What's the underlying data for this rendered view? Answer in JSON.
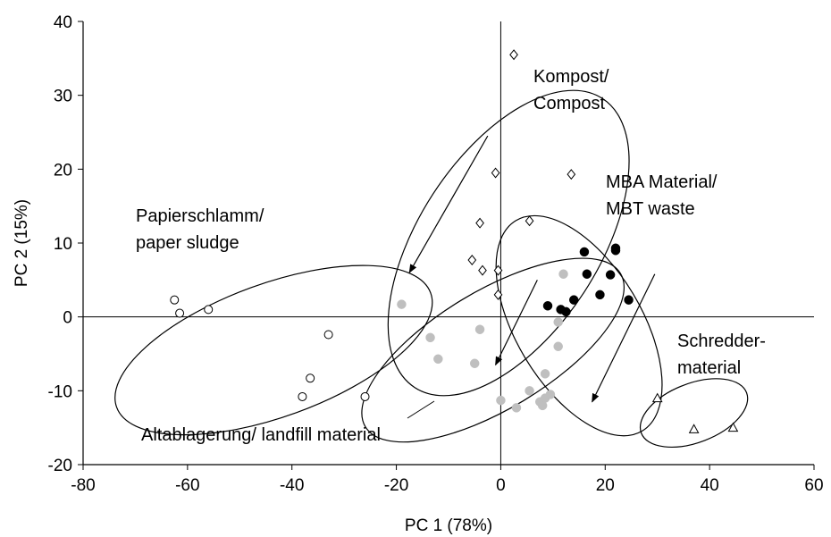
{
  "chart_data": {
    "type": "scatter",
    "title": "",
    "xlabel": "PC 1 (78%)",
    "ylabel": "PC 2 (15%)",
    "xlim": [
      -80,
      60
    ],
    "ylim": [
      -20,
      40
    ],
    "xticks": [
      -80,
      -60,
      -40,
      -20,
      0,
      20,
      40,
      60
    ],
    "yticks": [
      -20,
      -10,
      0,
      10,
      20,
      30,
      40
    ],
    "grid": false,
    "series": [
      {
        "name": "Kompost/ Compost",
        "marker": "diamond-open",
        "color": "#000000",
        "points": [
          [
            2.5,
            35.5
          ],
          [
            -1,
            19.5
          ],
          [
            13.5,
            19.3
          ],
          [
            5.5,
            13
          ],
          [
            -4,
            12.7
          ],
          [
            -5.5,
            7.7
          ],
          [
            -3.5,
            6.3
          ],
          [
            -0.5,
            6.3
          ],
          [
            -0.5,
            3
          ]
        ]
      },
      {
        "name": "MBA Material/ MBT waste",
        "marker": "circle-filled",
        "color": "#000000",
        "points": [
          [
            16,
            8.8
          ],
          [
            22,
            9.3
          ],
          [
            22,
            9
          ],
          [
            16.5,
            5.8
          ],
          [
            21,
            5.7
          ],
          [
            9,
            1.5
          ],
          [
            11.5,
            1
          ],
          [
            12.5,
            0.7
          ],
          [
            14,
            2.3
          ],
          [
            19,
            3
          ],
          [
            24.5,
            2.3
          ]
        ]
      },
      {
        "name": "Altablagerung/ landfill material",
        "marker": "circle-filled",
        "color": "#bfbfbf",
        "points": [
          [
            -19,
            1.7
          ],
          [
            -13.5,
            -2.8
          ],
          [
            -12,
            -5.7
          ],
          [
            -4,
            -1.7
          ],
          [
            -5,
            -6.3
          ],
          [
            12,
            5.8
          ],
          [
            11,
            -0.7
          ],
          [
            11,
            -4
          ],
          [
            0,
            -11.3
          ],
          [
            3,
            -12.3
          ],
          [
            5.5,
            -10
          ],
          [
            7.5,
            -11.5
          ],
          [
            8,
            -12
          ],
          [
            8.5,
            -11
          ],
          [
            8.5,
            -7.7
          ],
          [
            9.5,
            -10.5
          ]
        ]
      },
      {
        "name": "Papierschlamm/ paper sludge",
        "marker": "circle-open",
        "color": "#000000",
        "points": [
          [
            -62.5,
            2.3
          ],
          [
            -61.5,
            0.5
          ],
          [
            -56,
            1
          ],
          [
            -33,
            -2.4
          ],
          [
            -36.5,
            -8.3
          ],
          [
            -38,
            -10.8
          ],
          [
            -26,
            -10.8
          ]
        ]
      },
      {
        "name": "Schredder-material",
        "marker": "triangle-open",
        "color": "#000000",
        "points": [
          [
            30,
            -11
          ],
          [
            37,
            -15.2
          ],
          [
            44.5,
            -15
          ]
        ]
      }
    ],
    "annotations": [
      {
        "text_lines": [
          "Kompost/",
          "Compost"
        ]
      },
      {
        "text_lines": [
          "MBA Material/",
          "MBT waste"
        ]
      },
      {
        "text_lines": [
          "Papierschlamm/",
          "paper sludge"
        ]
      },
      {
        "text_lines": [
          "Schredder-",
          "material"
        ]
      },
      {
        "text_lines": [
          "Altablagerung/ landfill material"
        ]
      }
    ],
    "arrows": [
      {
        "from": [
          -2.5,
          24.5
        ],
        "to": [
          -17.5,
          6
        ]
      },
      {
        "from": [
          7,
          5
        ],
        "to": [
          -1,
          -6.5
        ]
      },
      {
        "from": [
          29.5,
          5.8
        ],
        "to": [
          17.5,
          -11.5
        ]
      }
    ],
    "ellipses": [
      {
        "group": "Papierschlamm/ paper sludge",
        "cx": -43.5,
        "cy": -4.5,
        "rx": 32,
        "ry": 9,
        "angle": -20
      },
      {
        "group": "Kompost/ Compost",
        "cx": 1.5,
        "cy": 10,
        "rx": 33,
        "ry": 12.2,
        "angle": -57
      },
      {
        "group": "Altablagerung/ landfill material",
        "cx": -1.5,
        "cy": -4.5,
        "rx": 28.5,
        "ry": 8,
        "angle": -31
      },
      {
        "group": "MBA Material/ MBT waste",
        "cx": 15,
        "cy": -1.2,
        "rx": 23.5,
        "ry": 8.5,
        "angle": 59
      },
      {
        "group": "Schredder-material",
        "cx": 37,
        "cy": -13,
        "rx": 10.8,
        "ry": 4,
        "angle": -21
      }
    ],
    "reference_lines": {
      "x": 0,
      "y": 0
    }
  }
}
